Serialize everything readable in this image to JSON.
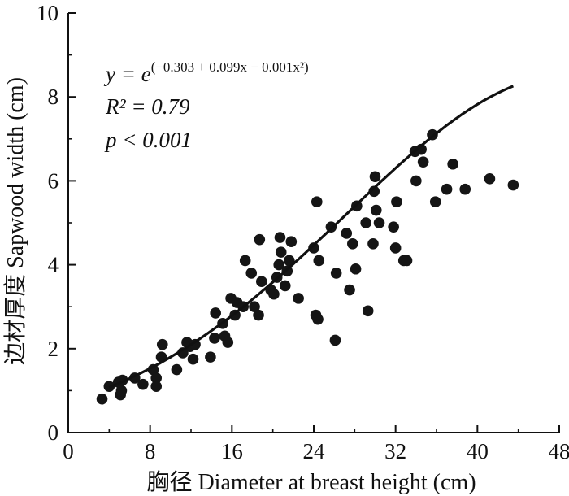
{
  "chart_data": {
    "type": "scatter",
    "xlabel": "胸径 Diameter at breast height (cm)",
    "ylabel": "边材厚度 Sapwood width (cm)",
    "xlim": [
      0,
      48
    ],
    "ylim": [
      0,
      10
    ],
    "xticks": [
      "0",
      "8",
      "16",
      "24",
      "32",
      "40",
      "48"
    ],
    "yticks": [
      "0",
      "2",
      "4",
      "6",
      "8",
      "10"
    ],
    "grid": false,
    "legend": "none",
    "annotations": {
      "equation_prefix": "y = e",
      "equation_exponent": "(−0.303 + 0.099x − 0.001x²)",
      "r2": "R² = 0.79",
      "p": "p < 0.001"
    },
    "fit": {
      "a": -0.303,
      "b": 0.099,
      "c": -0.001,
      "x_range": [
        4,
        43.5
      ]
    },
    "points": [
      [
        3.3,
        0.8
      ],
      [
        4.0,
        1.1
      ],
      [
        4.9,
        1.2
      ],
      [
        5.1,
        0.9
      ],
      [
        5.2,
        1.0
      ],
      [
        5.3,
        1.25
      ],
      [
        6.5,
        1.3
      ],
      [
        7.3,
        1.15
      ],
      [
        8.3,
        1.5
      ],
      [
        8.6,
        1.3
      ],
      [
        8.6,
        1.1
      ],
      [
        9.1,
        1.8
      ],
      [
        9.2,
        2.1
      ],
      [
        10.6,
        1.5
      ],
      [
        11.2,
        1.9
      ],
      [
        11.6,
        2.15
      ],
      [
        11.9,
        2.05
      ],
      [
        12.2,
        1.75
      ],
      [
        12.4,
        2.1
      ],
      [
        13.9,
        1.8
      ],
      [
        14.3,
        2.25
      ],
      [
        14.4,
        2.85
      ],
      [
        15.1,
        2.6
      ],
      [
        15.3,
        2.3
      ],
      [
        15.6,
        2.15
      ],
      [
        15.9,
        3.2
      ],
      [
        16.3,
        2.8
      ],
      [
        16.5,
        3.1
      ],
      [
        17.1,
        3.0
      ],
      [
        17.3,
        4.1
      ],
      [
        17.9,
        3.8
      ],
      [
        18.2,
        3.0
      ],
      [
        18.6,
        2.8
      ],
      [
        18.7,
        4.6
      ],
      [
        18.9,
        3.6
      ],
      [
        19.8,
        3.4
      ],
      [
        20.1,
        3.3
      ],
      [
        20.4,
        3.7
      ],
      [
        20.6,
        4.0
      ],
      [
        20.7,
        4.65
      ],
      [
        20.8,
        4.3
      ],
      [
        21.2,
        3.5
      ],
      [
        21.4,
        3.85
      ],
      [
        21.6,
        4.1
      ],
      [
        21.8,
        4.55
      ],
      [
        22.5,
        3.2
      ],
      [
        24.0,
        4.4
      ],
      [
        24.2,
        2.8
      ],
      [
        24.3,
        5.5
      ],
      [
        24.4,
        2.7
      ],
      [
        24.5,
        4.1
      ],
      [
        25.7,
        4.9
      ],
      [
        26.1,
        2.2
      ],
      [
        26.2,
        3.8
      ],
      [
        27.2,
        4.75
      ],
      [
        27.5,
        3.4
      ],
      [
        27.8,
        4.5
      ],
      [
        28.1,
        3.9
      ],
      [
        28.2,
        5.4
      ],
      [
        29.1,
        5.0
      ],
      [
        29.3,
        2.9
      ],
      [
        29.8,
        4.5
      ],
      [
        29.9,
        5.75
      ],
      [
        30.0,
        6.1
      ],
      [
        30.1,
        5.3
      ],
      [
        30.4,
        5.0
      ],
      [
        31.8,
        4.9
      ],
      [
        32.0,
        4.4
      ],
      [
        32.1,
        5.5
      ],
      [
        32.8,
        4.1
      ],
      [
        33.1,
        4.1
      ],
      [
        33.9,
        6.7
      ],
      [
        34.0,
        6.0
      ],
      [
        34.5,
        6.75
      ],
      [
        34.7,
        6.45
      ],
      [
        35.6,
        7.1
      ],
      [
        35.9,
        5.5
      ],
      [
        37.0,
        5.8
      ],
      [
        37.6,
        6.4
      ],
      [
        38.8,
        5.8
      ],
      [
        41.2,
        6.05
      ],
      [
        43.5,
        5.9
      ]
    ]
  }
}
